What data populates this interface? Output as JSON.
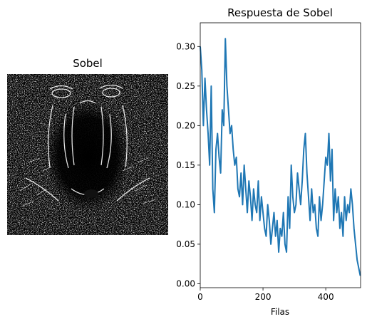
{
  "chart_data": [
    {
      "type": "image",
      "title": "Sobel",
      "description_visible": "Sobel edge magnitude image of a mandrill face"
    },
    {
      "type": "line",
      "title": "Respuesta de Sobel",
      "xlabel": "Filas",
      "ylabel": "",
      "xlim": [
        0,
        511
      ],
      "ylim": [
        -0.005,
        0.33
      ],
      "xticks": [
        0,
        200,
        400
      ],
      "yticks": [
        0.0,
        0.05,
        0.1,
        0.15,
        0.2,
        0.25,
        0.3
      ],
      "xtick_labels": [
        "0",
        "200",
        "400"
      ],
      "ytick_labels": [
        "0.00",
        "0.05",
        "0.10",
        "0.15",
        "0.20",
        "0.25",
        "0.30"
      ],
      "grid": false,
      "series": [
        {
          "color": "#1f77b4",
          "x": [
            0,
            5,
            10,
            15,
            20,
            25,
            30,
            35,
            40,
            45,
            50,
            55,
            60,
            65,
            70,
            75,
            80,
            85,
            90,
            95,
            100,
            105,
            110,
            115,
            120,
            125,
            130,
            135,
            140,
            145,
            150,
            155,
            160,
            165,
            170,
            175,
            180,
            185,
            190,
            195,
            200,
            205,
            210,
            215,
            220,
            225,
            230,
            235,
            240,
            245,
            250,
            255,
            260,
            265,
            270,
            275,
            280,
            285,
            290,
            295,
            300,
            305,
            310,
            315,
            320,
            325,
            330,
            335,
            340,
            345,
            350,
            355,
            360,
            365,
            370,
            375,
            380,
            385,
            390,
            395,
            400,
            405,
            410,
            415,
            420,
            425,
            430,
            435,
            440,
            445,
            450,
            455,
            460,
            465,
            470,
            475,
            480,
            485,
            490,
            495,
            500,
            505,
            510
          ],
          "values": [
            0.3,
            0.27,
            0.2,
            0.26,
            0.22,
            0.19,
            0.15,
            0.25,
            0.12,
            0.09,
            0.17,
            0.19,
            0.16,
            0.14,
            0.22,
            0.2,
            0.31,
            0.25,
            0.22,
            0.19,
            0.2,
            0.17,
            0.15,
            0.16,
            0.12,
            0.11,
            0.14,
            0.1,
            0.15,
            0.12,
            0.09,
            0.13,
            0.11,
            0.08,
            0.12,
            0.1,
            0.09,
            0.13,
            0.08,
            0.11,
            0.09,
            0.07,
            0.06,
            0.1,
            0.08,
            0.05,
            0.07,
            0.09,
            0.06,
            0.08,
            0.04,
            0.07,
            0.06,
            0.09,
            0.05,
            0.04,
            0.11,
            0.07,
            0.15,
            0.11,
            0.09,
            0.1,
            0.14,
            0.12,
            0.1,
            0.13,
            0.17,
            0.19,
            0.14,
            0.11,
            0.08,
            0.12,
            0.09,
            0.1,
            0.07,
            0.06,
            0.11,
            0.08,
            0.1,
            0.13,
            0.16,
            0.15,
            0.19,
            0.13,
            0.17,
            0.08,
            0.12,
            0.09,
            0.11,
            0.07,
            0.09,
            0.06,
            0.11,
            0.08,
            0.1,
            0.09,
            0.12,
            0.1,
            0.07,
            0.05,
            0.03,
            0.02,
            0.01
          ]
        }
      ]
    }
  ]
}
